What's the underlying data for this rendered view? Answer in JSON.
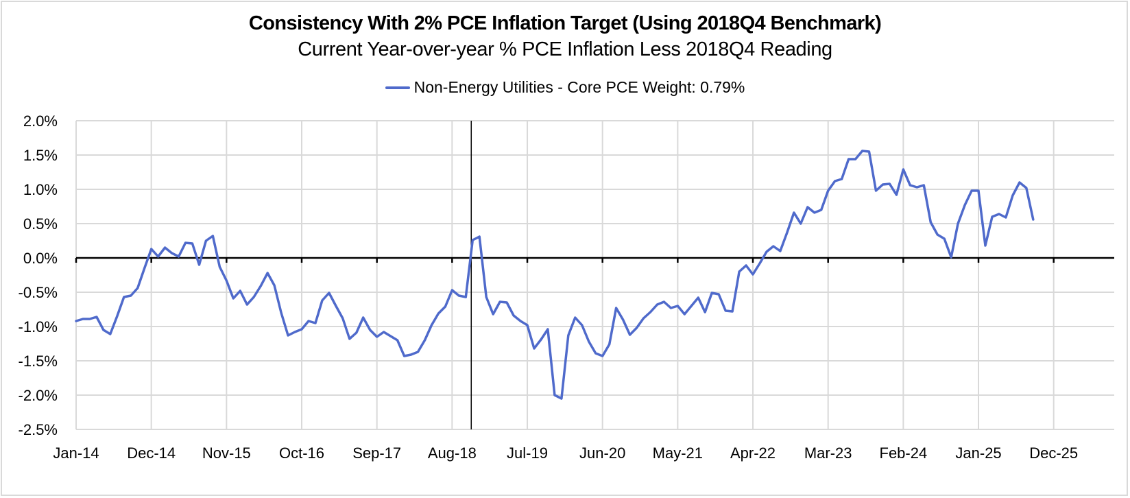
{
  "chart_data": {
    "type": "line",
    "title": "Consistency With 2% PCE Inflation Target (Using 2018Q4 Benchmark)",
    "subtitle": "Current Year-over-year % PCE Inflation Less 2018Q4 Reading",
    "xlabel": "",
    "ylabel": "",
    "legend_position": "top",
    "grid": true,
    "ylim": [
      -2.5,
      2.0
    ],
    "y_ticks": [
      2.0,
      1.5,
      1.0,
      0.5,
      0.0,
      -0.5,
      -1.0,
      -1.5,
      -2.0,
      -2.5
    ],
    "y_tick_labels": [
      "2.0%",
      "1.5%",
      "1.0%",
      "0.5%",
      "0.0%",
      "-0.5%",
      "-1.0%",
      "-1.5%",
      "-2.0%",
      "-2.5%"
    ],
    "x_start": "Jan-14",
    "x_range_months": [
      0,
      152
    ],
    "x_tick_labels": [
      "Jan-14",
      "Dec-14",
      "Nov-15",
      "Oct-16",
      "Sep-17",
      "Aug-18",
      "Jul-19",
      "Jun-20",
      "May-21",
      "Apr-22",
      "Mar-23",
      "Feb-24",
      "Jan-25",
      "Dec-25"
    ],
    "x_tick_interval_months": 11,
    "benchmark_line": {
      "label": "2018Q4",
      "month_index": 57.8
    },
    "series": [
      {
        "name": "Non-Energy Utilities - Core PCE Weight: 0.79%",
        "color": "#4f6acb",
        "unit": "percent",
        "frequency": "monthly, starting Jan-14",
        "values": [
          -0.92,
          -0.89,
          -0.89,
          -0.86,
          -1.05,
          -1.11,
          -0.85,
          -0.57,
          -0.55,
          -0.44,
          -0.15,
          0.13,
          0.02,
          0.15,
          0.07,
          0.02,
          0.22,
          0.21,
          -0.1,
          0.25,
          0.32,
          -0.13,
          -0.33,
          -0.59,
          -0.48,
          -0.68,
          -0.57,
          -0.41,
          -0.22,
          -0.4,
          -0.8,
          -1.13,
          -1.08,
          -1.04,
          -0.92,
          -0.95,
          -0.62,
          -0.51,
          -0.7,
          -0.88,
          -1.18,
          -1.09,
          -0.87,
          -1.05,
          -1.15,
          -1.08,
          -1.14,
          -1.2,
          -1.43,
          -1.41,
          -1.37,
          -1.2,
          -0.98,
          -0.81,
          -0.71,
          -0.47,
          -0.55,
          -0.57,
          0.26,
          0.31,
          -0.57,
          -0.82,
          -0.64,
          -0.65,
          -0.84,
          -0.92,
          -0.98,
          -1.32,
          -1.19,
          -1.04,
          -2.0,
          -2.05,
          -1.13,
          -0.87,
          -0.98,
          -1.22,
          -1.39,
          -1.43,
          -1.26,
          -0.73,
          -0.9,
          -1.12,
          -1.02,
          -0.88,
          -0.79,
          -0.68,
          -0.64,
          -0.73,
          -0.7,
          -0.82,
          -0.7,
          -0.58,
          -0.79,
          -0.51,
          -0.53,
          -0.77,
          -0.78,
          -0.2,
          -0.11,
          -0.24,
          -0.08,
          0.09,
          0.17,
          0.1,
          0.37,
          0.66,
          0.5,
          0.74,
          0.66,
          0.7,
          0.98,
          1.12,
          1.15,
          1.44,
          1.44,
          1.56,
          1.55,
          0.98,
          1.07,
          1.08,
          0.92,
          1.29,
          1.06,
          1.03,
          1.06,
          0.52,
          0.34,
          0.28,
          0.01,
          0.5,
          0.77,
          0.98,
          0.98,
          0.18,
          0.6,
          0.64,
          0.59,
          0.91,
          1.1,
          1.02,
          0.56
        ]
      }
    ]
  },
  "legend": {
    "label": "Non-Energy Utilities - Core PCE Weight: 0.79%"
  },
  "colors": {
    "series": "#4f6acb",
    "grid": "#d9d9d9",
    "zero_axis": "#000000",
    "benchmark": "#000000"
  }
}
